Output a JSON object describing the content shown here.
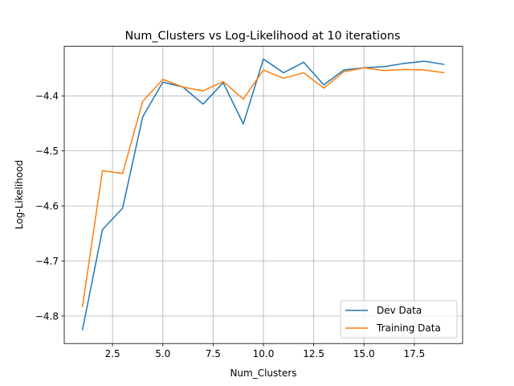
{
  "chart_data": {
    "type": "line",
    "title": "Num_Clusters vs Log-Likelihood at 10 iterations",
    "xlabel": "Num_Clusters",
    "ylabel": "Log-Likelihood",
    "xlim": [
      0.1,
      19.9
    ],
    "ylim": [
      -4.85,
      -4.31
    ],
    "xticks": [
      2.5,
      5.0,
      7.5,
      10.0,
      12.5,
      15.0,
      17.5
    ],
    "xtick_labels": [
      "2.5",
      "5.0",
      "7.5",
      "10.0",
      "12.5",
      "15.0",
      "17.5"
    ],
    "yticks": [
      -4.8,
      -4.7,
      -4.6,
      -4.5,
      -4.4
    ],
    "ytick_labels": [
      "−4.8",
      "−4.7",
      "−4.6",
      "−4.5",
      "−4.4"
    ],
    "grid": true,
    "legend_position": "lower-right",
    "x": [
      1,
      2,
      3,
      4,
      5,
      6,
      7,
      8,
      9,
      10,
      11,
      12,
      13,
      14,
      15,
      16,
      17,
      18,
      19
    ],
    "series": [
      {
        "name": "Dev Data",
        "color": "#1f77b4",
        "values": [
          -4.826,
          -4.643,
          -4.604,
          -4.438,
          -4.375,
          -4.384,
          -4.415,
          -4.376,
          -4.451,
          -4.333,
          -4.358,
          -4.339,
          -4.38,
          -4.353,
          -4.349,
          -4.347,
          -4.341,
          -4.337,
          -4.343
        ]
      },
      {
        "name": "Training Data",
        "color": "#ff7f0e",
        "values": [
          -4.784,
          -4.536,
          -4.541,
          -4.41,
          -4.37,
          -4.384,
          -4.391,
          -4.374,
          -4.406,
          -4.353,
          -4.368,
          -4.358,
          -4.386,
          -4.356,
          -4.349,
          -4.354,
          -4.352,
          -4.353,
          -4.358
        ]
      }
    ]
  }
}
